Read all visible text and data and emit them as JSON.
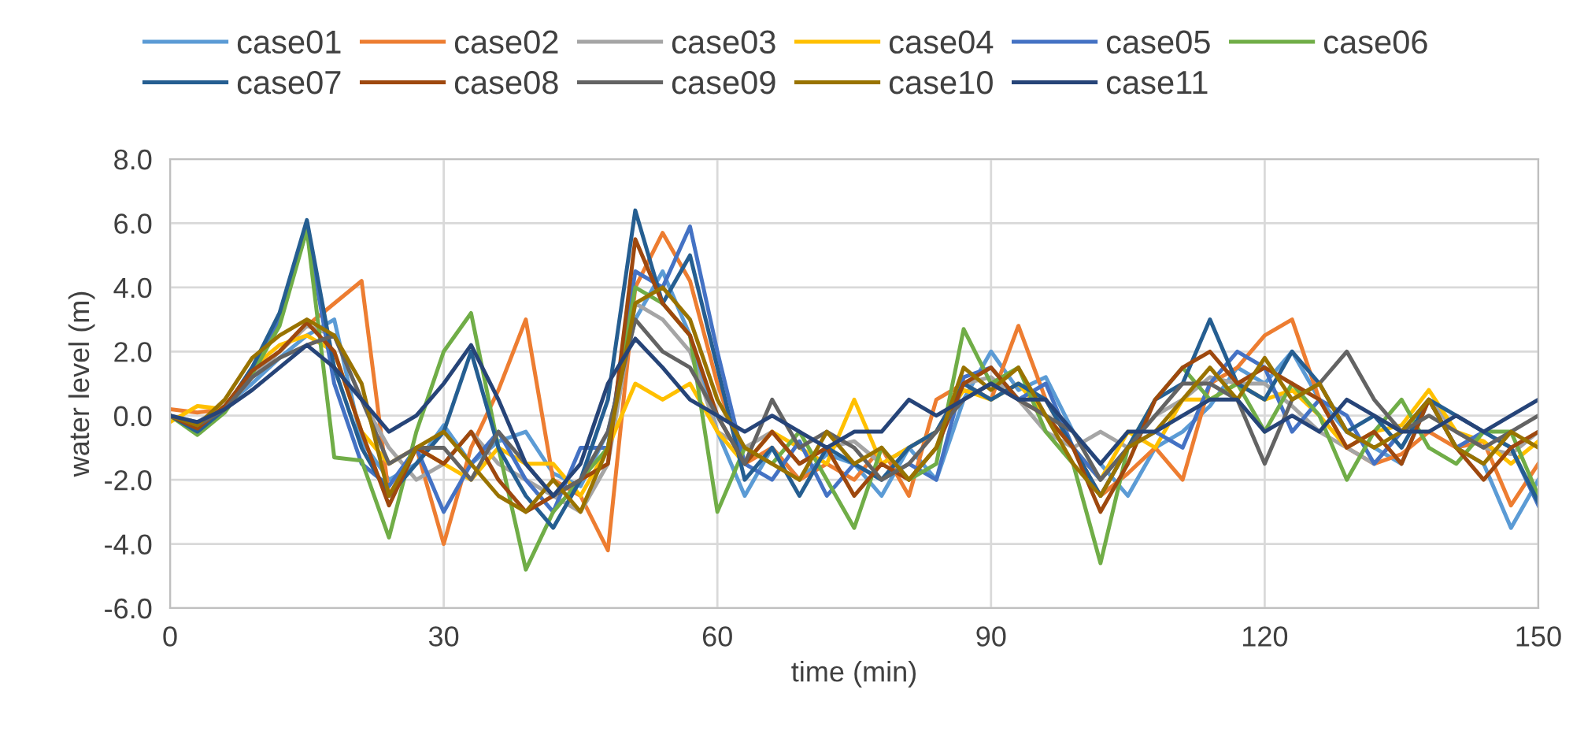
{
  "chart_data": {
    "type": "line",
    "xlabel": "time (min)",
    "ylabel": "water level (m)",
    "x": [
      0,
      3,
      6,
      9,
      12,
      15,
      18,
      21,
      24,
      27,
      30,
      33,
      36,
      39,
      42,
      45,
      48,
      51,
      54,
      57,
      60,
      63,
      66,
      69,
      72,
      75,
      78,
      81,
      84,
      87,
      90,
      93,
      96,
      99,
      102,
      105,
      108,
      111,
      114,
      117,
      120,
      123,
      126,
      129,
      132,
      135,
      138,
      141,
      144,
      147,
      150
    ],
    "xlim": [
      0,
      150
    ],
    "xticks": [
      0,
      30,
      60,
      90,
      120,
      150
    ],
    "ylim": [
      -6,
      8
    ],
    "yticks": [
      {
        "value": -6,
        "label": "-6.0"
      },
      {
        "value": -4,
        "label": "-4.0"
      },
      {
        "value": -2,
        "label": "-2.0"
      },
      {
        "value": 0,
        "label": "0.0"
      },
      {
        "value": 2,
        "label": "2.0"
      },
      {
        "value": 4,
        "label": "4.0"
      },
      {
        "value": 6,
        "label": "6.0"
      },
      {
        "value": 8,
        "label": "8.0"
      }
    ],
    "grid": true,
    "legend": "top",
    "marker": "none",
    "line_style": "solid",
    "series": [
      {
        "name": "case01",
        "color": "#5b9bd5",
        "values": [
          0,
          -0.3,
          0.3,
          1.0,
          1.8,
          2.5,
          3.0,
          -0.8,
          -2.0,
          -1.5,
          -0.3,
          -1.5,
          -0.8,
          -0.5,
          -1.8,
          -2.2,
          -0.5,
          3.0,
          4.5,
          2.5,
          -0.5,
          -2.5,
          -1.0,
          -2.0,
          -1.2,
          -1.5,
          -2.5,
          -1.0,
          -2.0,
          0.5,
          2.0,
          0.8,
          1.2,
          -0.5,
          -1.5,
          -2.5,
          -1.0,
          -0.5,
          0.3,
          1.5,
          1.0,
          2.0,
          0.5,
          -0.5,
          -1.0,
          -1.5,
          0.5,
          -1.0,
          -1.5,
          -3.5,
          -2.0
        ]
      },
      {
        "name": "case02",
        "color": "#ed7d31",
        "values": [
          0.2,
          0.1,
          0.2,
          1.2,
          2.0,
          2.8,
          3.5,
          4.2,
          -2.5,
          -1.0,
          -4.0,
          -1.0,
          0.8,
          3.0,
          -2.0,
          -2.5,
          -4.2,
          4.0,
          5.7,
          4.2,
          1.0,
          -1.5,
          -1.0,
          -2.0,
          -1.5,
          -2.0,
          -1.0,
          -2.5,
          0.5,
          1.0,
          0.5,
          2.8,
          0.5,
          -1.0,
          -2.5,
          -1.8,
          -1.0,
          -2.0,
          1.0,
          1.5,
          2.5,
          3.0,
          0.5,
          -1.0,
          -1.5,
          -1.2,
          -0.5,
          -1.0,
          -0.8,
          -2.8,
          -1.5
        ]
      },
      {
        "name": "case03",
        "color": "#a5a5a5",
        "values": [
          0,
          -0.2,
          0.3,
          1.2,
          2.0,
          2.8,
          2.5,
          0.5,
          -1.0,
          -2.0,
          -1.5,
          -0.5,
          -1.5,
          -2.0,
          -2.5,
          -3.0,
          -1.5,
          3.5,
          3.0,
          2.0,
          -0.5,
          -1.0,
          -0.5,
          -1.5,
          -1.0,
          -0.8,
          -1.5,
          -1.0,
          -0.5,
          1.0,
          1.2,
          0.5,
          -0.5,
          -1.0,
          -0.5,
          -1.0,
          0,
          0.5,
          1.2,
          1.0,
          1.0,
          0.3,
          -0.5,
          -1.0,
          -1.5,
          -0.5,
          0.5,
          -0.5,
          -1.0,
          -1.2,
          -0.5
        ]
      },
      {
        "name": "case04",
        "color": "#ffc000",
        "values": [
          -0.2,
          0.3,
          0.2,
          1.5,
          2.2,
          2.5,
          2.0,
          -0.5,
          -1.5,
          -1.0,
          -1.5,
          -2.0,
          -1.0,
          -1.5,
          -1.5,
          -2.5,
          -1.0,
          1.0,
          0.5,
          1.0,
          -0.5,
          -1.5,
          -0.5,
          -1.0,
          -1.5,
          0.5,
          -1.5,
          -1.0,
          -0.5,
          0.8,
          0.5,
          1.0,
          0,
          -1.0,
          -2.0,
          -0.5,
          -1.0,
          0.5,
          0.5,
          1.0,
          0.5,
          0.8,
          0,
          -1.0,
          -0.5,
          -0.3,
          0.8,
          -0.5,
          -0.8,
          -1.5,
          -0.8
        ]
      },
      {
        "name": "case05",
        "color": "#4472c4",
        "values": [
          0,
          -0.5,
          0.2,
          1.5,
          3.0,
          5.8,
          1.0,
          -1.5,
          -2.2,
          -1.0,
          -3.0,
          -1.5,
          -0.5,
          -2.0,
          -3.0,
          -1.0,
          -1.0,
          4.5,
          4.0,
          5.9,
          2.0,
          -1.5,
          -2.0,
          -0.8,
          -2.5,
          -1.5,
          -2.0,
          -1.5,
          -2.0,
          1.2,
          1.5,
          0.5,
          1.0,
          -1.0,
          -2.0,
          -1.0,
          -0.5,
          -1.0,
          1.0,
          2.0,
          1.5,
          -0.5,
          0.5,
          0,
          -1.5,
          -0.5,
          0.5,
          -1.0,
          -0.5,
          -1.0,
          -2.8
        ]
      },
      {
        "name": "case06",
        "color": "#70ad47",
        "values": [
          0,
          -0.6,
          0.1,
          1.3,
          2.8,
          5.8,
          -1.3,
          -1.4,
          -3.8,
          -0.5,
          2.0,
          3.2,
          -1.0,
          -4.8,
          -3.0,
          -2.0,
          -1.0,
          4.0,
          3.5,
          2.5,
          -3.0,
          -1.0,
          -1.5,
          -0.5,
          -2.0,
          -3.5,
          -1.0,
          -2.0,
          -1.5,
          2.7,
          1.0,
          1.5,
          -0.5,
          -1.5,
          -4.6,
          -1.0,
          0.5,
          1.5,
          0.5,
          1.0,
          -0.5,
          1.0,
          0,
          -2.0,
          -0.5,
          0.5,
          -1.0,
          -1.5,
          -0.5,
          -0.5,
          -2.5
        ]
      },
      {
        "name": "case07",
        "color": "#255e91",
        "values": [
          0,
          -0.5,
          0.2,
          1.5,
          3.2,
          6.1,
          1.5,
          -1.0,
          -2.5,
          -1.5,
          -0.5,
          2.0,
          -1.0,
          -2.5,
          -3.5,
          -2.0,
          0.5,
          6.4,
          3.5,
          5.0,
          1.5,
          -2.0,
          -1.0,
          -2.5,
          -1.0,
          -1.5,
          -2.0,
          -1.0,
          -0.5,
          1.0,
          0.5,
          1.0,
          0.5,
          -1.0,
          -2.5,
          -1.0,
          0.5,
          1.0,
          3.0,
          1.0,
          0.5,
          2.0,
          1.0,
          -0.5,
          0,
          -1.0,
          0.5,
          0,
          -0.5,
          -1.0,
          -2.7
        ]
      },
      {
        "name": "case08",
        "color": "#9e480e",
        "values": [
          0,
          -0.4,
          0.3,
          1.4,
          2.0,
          2.9,
          2.0,
          -0.5,
          -2.8,
          -1.0,
          -1.5,
          -0.5,
          -2.0,
          -3.0,
          -2.5,
          -2.0,
          -1.5,
          5.5,
          3.5,
          2.5,
          0,
          -1.5,
          -0.5,
          -1.5,
          -1.0,
          -2.5,
          -1.5,
          -2.0,
          -1.0,
          1.0,
          1.5,
          0.5,
          0,
          -1.0,
          -3.0,
          -1.5,
          0.5,
          1.5,
          2.0,
          1.0,
          1.5,
          1.0,
          0.5,
          -1.0,
          -0.5,
          -1.5,
          0.5,
          -1.0,
          -2.0,
          -1.0,
          -0.5
        ]
      },
      {
        "name": "case09",
        "color": "#636363",
        "values": [
          0,
          -0.3,
          0.2,
          1.2,
          1.8,
          2.2,
          2.5,
          0.5,
          -1.5,
          -1.0,
          -1.0,
          -2.0,
          -0.5,
          -1.5,
          -2.5,
          -2.0,
          -0.5,
          3.0,
          2.0,
          1.5,
          0,
          -1.5,
          0.5,
          -1.0,
          -0.5,
          -1.0,
          -2.0,
          -1.5,
          -0.5,
          0.5,
          1.0,
          0.5,
          0,
          -0.5,
          -2.0,
          -1.0,
          0,
          1.0,
          1.0,
          0.5,
          -1.5,
          0.5,
          1.0,
          2.0,
          0.5,
          -0.5,
          0,
          -0.5,
          -1.0,
          -0.5,
          0
        ]
      },
      {
        "name": "case10",
        "color": "#997300",
        "values": [
          0,
          -0.3,
          0.5,
          1.8,
          2.5,
          3.0,
          2.5,
          1.0,
          -2.5,
          -1.0,
          -0.5,
          -1.5,
          -2.5,
          -3.0,
          -2.0,
          -3.0,
          -1.0,
          3.5,
          4.0,
          3.0,
          0.5,
          -1.0,
          -1.5,
          -2.0,
          -0.5,
          -1.5,
          -1.0,
          -2.0,
          -1.0,
          1.5,
          0.8,
          1.5,
          0,
          -1.5,
          -2.5,
          -1.0,
          -0.5,
          0.5,
          1.5,
          0.5,
          1.8,
          0.5,
          1.0,
          -0.5,
          -1.0,
          -0.5,
          0.5,
          -1.0,
          -1.5,
          -0.5,
          -1.0
        ]
      },
      {
        "name": "case11",
        "color": "#264478",
        "values": [
          0,
          -0.2,
          0.2,
          0.8,
          1.5,
          2.2,
          1.5,
          0.5,
          -0.5,
          0,
          1.0,
          2.2,
          0.5,
          -1.5,
          -2.5,
          -1.5,
          1.0,
          2.4,
          1.5,
          0.5,
          0,
          -0.5,
          0,
          -0.5,
          -1.0,
          -0.5,
          -0.5,
          0.5,
          0,
          0.5,
          1.0,
          0.5,
          0.5,
          -0.5,
          -1.5,
          -0.5,
          -0.5,
          0,
          0.5,
          0.5,
          -0.5,
          0,
          -0.5,
          0.5,
          0,
          -0.5,
          -0.5,
          0,
          -0.5,
          0,
          0.5
        ]
      }
    ]
  }
}
